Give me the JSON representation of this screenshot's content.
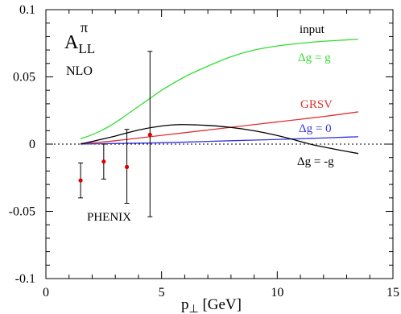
{
  "chart_data": {
    "type": "line",
    "title": "",
    "xlabel": "p",
    "xlabel_sub": "⊥",
    "xlabel_unit": " [GeV]",
    "ylabel": "",
    "xlim": [
      0,
      15
    ],
    "ylim": [
      -0.1,
      0.1
    ],
    "x_ticks": [
      {
        "value": 0,
        "label": "0"
      },
      {
        "value": 5,
        "label": "5"
      },
      {
        "value": 10,
        "label": "10"
      },
      {
        "value": 15,
        "label": "15"
      }
    ],
    "y_ticks": [
      {
        "value": 0.1,
        "label": "0.1"
      },
      {
        "value": 0.05,
        "label": "0.05"
      },
      {
        "value": 0,
        "label": "0"
      },
      {
        "value": -0.05,
        "label": "-0.05"
      },
      {
        "value": -0.1,
        "label": "-0.1"
      }
    ],
    "x_minor_step": 1,
    "y_minor_step": 0.01,
    "zero_line": "dotted",
    "grid": false,
    "annotations": {
      "quantity": "A",
      "quantity_sup": "π",
      "quantity_sub": "LL",
      "order": "NLO",
      "input_header": "input",
      "dataset": "PHENIX"
    },
    "series": [
      {
        "name": "Δg = g",
        "color": "#33dd33",
        "x": [
          1.5,
          2,
          2.5,
          3,
          3.5,
          4,
          4.5,
          5,
          6,
          7,
          8,
          9,
          10,
          11,
          12,
          13,
          13.5
        ],
        "values": [
          0.004,
          0.007,
          0.011,
          0.016,
          0.022,
          0.028,
          0.034,
          0.04,
          0.05,
          0.058,
          0.065,
          0.07,
          0.073,
          0.075,
          0.0765,
          0.0775,
          0.078
        ]
      },
      {
        "name": "GRSV",
        "color": "#dd3333",
        "x": [
          1.5,
          2,
          3,
          4,
          5,
          6,
          7,
          8,
          9,
          10,
          11,
          12,
          13,
          13.5
        ],
        "values": [
          0.0005,
          0.001,
          0.0025,
          0.0045,
          0.0065,
          0.0085,
          0.0105,
          0.0125,
          0.0145,
          0.0165,
          0.0185,
          0.0205,
          0.0228,
          0.024
        ]
      },
      {
        "name": "Δg = 0",
        "color": "#3333dd",
        "x": [
          1.5,
          3,
          5,
          7,
          9,
          11,
          13,
          13.5
        ],
        "values": [
          0.0,
          0.0005,
          0.001,
          0.002,
          0.003,
          0.004,
          0.0052,
          0.0055
        ]
      },
      {
        "name": "Δg = -g",
        "color": "#000000",
        "x": [
          1.5,
          2,
          3,
          4,
          5,
          5.8,
          6.5,
          7.5,
          8.5,
          9.5,
          10.5,
          11.5,
          12.5,
          13.5
        ],
        "values": [
          0.0,
          0.002,
          0.006,
          0.0105,
          0.0135,
          0.0145,
          0.0143,
          0.0133,
          0.0113,
          0.0083,
          0.0043,
          -0.0003,
          -0.0038,
          -0.007
        ]
      }
    ],
    "data_points": {
      "name": "PHENIX",
      "color": "#dd0000",
      "points": [
        {
          "x": 1.5,
          "y": -0.027,
          "err_low": -0.04,
          "err_high": -0.014
        },
        {
          "x": 2.5,
          "y": -0.013,
          "err_low": -0.026,
          "err_high": 0.0
        },
        {
          "x": 3.5,
          "y": -0.017,
          "err_low": -0.044,
          "err_high": 0.011
        },
        {
          "x": 4.5,
          "y": 0.007,
          "err_low": -0.054,
          "err_high": 0.069
        }
      ]
    }
  }
}
